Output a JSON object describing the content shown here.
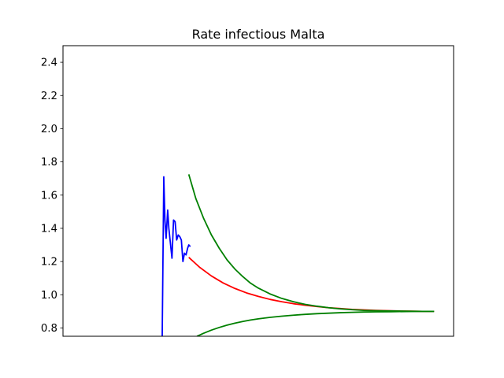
{
  "chart_data": {
    "type": "line",
    "title": "Rate infectious Malta",
    "xlabel": "",
    "ylabel": "",
    "ylim": [
      0.75,
      2.5
    ],
    "xlim": [
      0,
      100
    ],
    "yticks": [
      "0.8",
      "1.0",
      "1.2",
      "1.4",
      "1.6",
      "1.8",
      "2.0",
      "2.2",
      "2.4"
    ],
    "grid": false,
    "x_ticks_visible": false,
    "series": [
      {
        "color": "#0000ff",
        "x": [
          25.4,
          25.8,
          26.1,
          26.4,
          26.8,
          27.1,
          27.5,
          27.9,
          28.3,
          28.7,
          29.1,
          29.5,
          29.9,
          30.3,
          30.7,
          31.1,
          31.5,
          31.9,
          32.2,
          32.6
        ],
        "y": [
          0.75,
          1.71,
          1.45,
          1.34,
          1.51,
          1.4,
          1.31,
          1.22,
          1.45,
          1.44,
          1.33,
          1.36,
          1.35,
          1.33,
          1.2,
          1.25,
          1.24,
          1.28,
          1.3,
          1.29
        ]
      },
      {
        "color": "#ff0000",
        "x": [
          32.2,
          35,
          38,
          41,
          44,
          47,
          50,
          53,
          56,
          59,
          62,
          65,
          68,
          71,
          74,
          77,
          80,
          83,
          86,
          89,
          92,
          95
        ],
        "y": [
          1.225,
          1.165,
          1.113,
          1.071,
          1.038,
          1.011,
          0.99,
          0.972,
          0.958,
          0.946,
          0.937,
          0.929,
          0.922,
          0.917,
          0.912,
          0.909,
          0.906,
          0.904,
          0.902,
          0.901,
          0.9,
          0.9
        ]
      },
      {
        "color": "#008000",
        "x": [
          32.2,
          34,
          36,
          38,
          40,
          42,
          44,
          46,
          48,
          50,
          53,
          56,
          59,
          62,
          65,
          68,
          71,
          74,
          77,
          80,
          84,
          88,
          92,
          95
        ],
        "y": [
          1.725,
          1.58,
          1.46,
          1.36,
          1.28,
          1.21,
          1.155,
          1.11,
          1.07,
          1.04,
          1.005,
          0.978,
          0.958,
          0.942,
          0.931,
          0.922,
          0.915,
          0.91,
          0.906,
          0.904,
          0.902,
          0.901,
          0.9,
          0.9
        ]
      },
      {
        "color": "#008000",
        "x": [
          34.3,
          36,
          38,
          40,
          42,
          44,
          46,
          48,
          50,
          53,
          56,
          59,
          62,
          65,
          68,
          71,
          74,
          77,
          80,
          84,
          88,
          92,
          95
        ],
        "y": [
          0.75,
          0.768,
          0.787,
          0.803,
          0.817,
          0.829,
          0.839,
          0.848,
          0.855,
          0.864,
          0.871,
          0.877,
          0.882,
          0.886,
          0.889,
          0.892,
          0.894,
          0.896,
          0.897,
          0.898,
          0.899,
          0.9,
          0.9
        ]
      }
    ]
  }
}
